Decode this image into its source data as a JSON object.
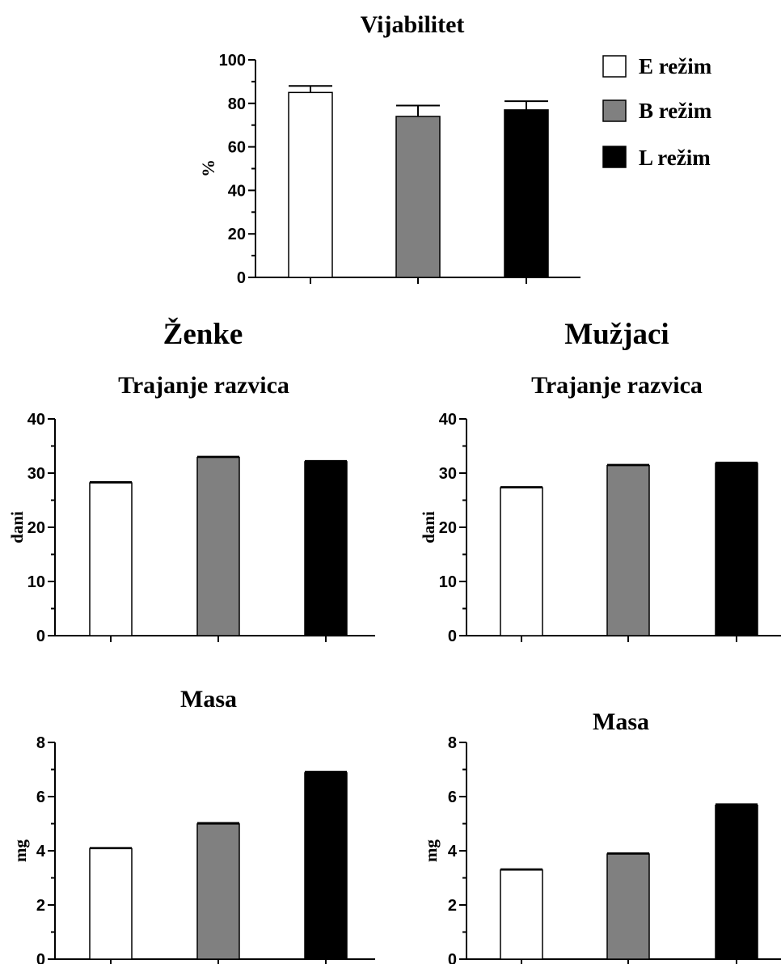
{
  "figure": {
    "heading_left": "Ženke",
    "heading_right": "Mužjaci"
  },
  "legend": {
    "items": [
      {
        "label": "E režim",
        "color": "#ffffff"
      },
      {
        "label": "B režim",
        "color": "#808080"
      },
      {
        "label": "L režim",
        "color": "#000000"
      }
    ]
  },
  "chart_data": [
    {
      "type": "bar",
      "title": "Vijabilitet",
      "ylabel": "%",
      "ylim": [
        0,
        100
      ],
      "yticks": [
        0,
        20,
        40,
        60,
        80,
        100
      ],
      "categories": [
        "E režim",
        "B režim",
        "L režim"
      ],
      "values": [
        85,
        74,
        77
      ],
      "errors": [
        3,
        5,
        4
      ],
      "colors": [
        "#ffffff",
        "#808080",
        "#000000"
      ]
    },
    {
      "type": "bar",
      "title": "Trajanje razvica",
      "ylabel": "dani",
      "ylim": [
        0,
        40
      ],
      "yticks": [
        0,
        10,
        20,
        30,
        40
      ],
      "categories": [
        "E režim",
        "B režim",
        "L režim"
      ],
      "values": [
        28.2,
        32.9,
        32.1
      ],
      "errors": [
        0.15,
        0.15,
        0.15
      ],
      "colors": [
        "#ffffff",
        "#808080",
        "#000000"
      ]
    },
    {
      "type": "bar",
      "title": "Trajanje razvica",
      "ylabel": "dani",
      "ylim": [
        0,
        40
      ],
      "yticks": [
        0,
        10,
        20,
        30,
        40
      ],
      "categories": [
        "E režim",
        "B režim",
        "L režim"
      ],
      "values": [
        27.3,
        31.4,
        31.8
      ],
      "errors": [
        0.15,
        0.15,
        0.15
      ],
      "colors": [
        "#ffffff",
        "#808080",
        "#000000"
      ]
    },
    {
      "type": "bar",
      "title": "Masa",
      "ylabel": "mg",
      "ylim": [
        0,
        8
      ],
      "yticks": [
        0,
        2,
        4,
        6,
        8
      ],
      "categories": [
        "E režim",
        "B režim",
        "L režim"
      ],
      "values": [
        4.08,
        4.99,
        6.88
      ],
      "errors": [
        0.03,
        0.04,
        0.04
      ],
      "colors": [
        "#ffffff",
        "#808080",
        "#000000"
      ]
    },
    {
      "type": "bar",
      "title": "Masa",
      "ylabel": "mg",
      "ylim": [
        0,
        8
      ],
      "yticks": [
        0,
        2,
        4,
        6,
        8
      ],
      "categories": [
        "E režim",
        "B režim",
        "L režim"
      ],
      "values": [
        3.29,
        3.88,
        5.68
      ],
      "errors": [
        0.03,
        0.03,
        0.04
      ],
      "colors": [
        "#ffffff",
        "#808080",
        "#000000"
      ]
    }
  ]
}
